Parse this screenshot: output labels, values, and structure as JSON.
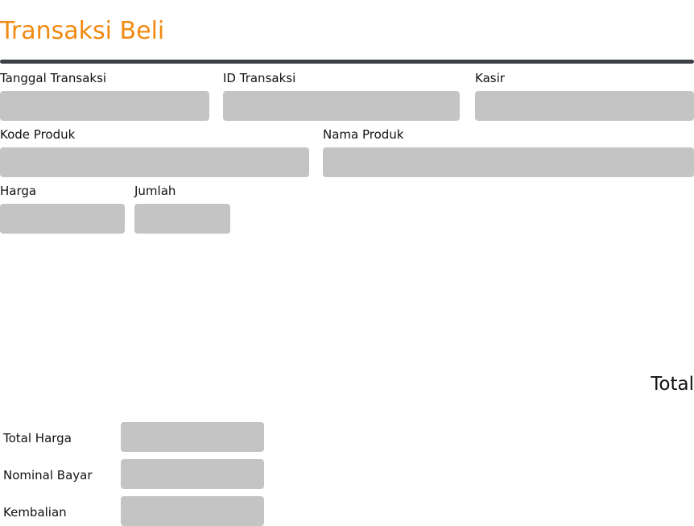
{
  "page": {
    "title": "Transaksi Beli",
    "accent_color": "#f08a12",
    "divider_color": "#3d4049",
    "input_color": "#c4c4c4"
  },
  "form": {
    "tanggal_transaksi": {
      "label": "Tanggal Transaksi",
      "value": ""
    },
    "id_transaksi": {
      "label": "ID Transaksi",
      "value": ""
    },
    "kasir": {
      "label": "Kasir",
      "value": ""
    },
    "kode_produk": {
      "label": "Kode Produk",
      "value": ""
    },
    "nama_produk": {
      "label": "Nama Produk",
      "value": ""
    },
    "harga": {
      "label": "Harga",
      "value": ""
    },
    "jumlah": {
      "label": "Jumlah",
      "value": ""
    }
  },
  "summary": {
    "heading": "Total",
    "total_harga": {
      "label": "Total Harga",
      "value": ""
    },
    "nominal_bayar": {
      "label": "Nominal Bayar",
      "value": ""
    },
    "kembalian": {
      "label": "Kembalian",
      "value": ""
    }
  }
}
